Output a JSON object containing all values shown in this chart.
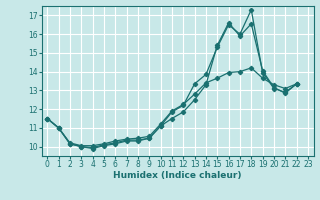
{
  "background_color": "#c8e8e8",
  "grid_color": "#ffffff",
  "line_color": "#1a7070",
  "xlabel": "Humidex (Indice chaleur)",
  "xlim": [
    -0.5,
    23.5
  ],
  "ylim": [
    9.5,
    17.5
  ],
  "yticks": [
    10,
    11,
    12,
    13,
    14,
    15,
    16,
    17
  ],
  "xticks": [
    0,
    1,
    2,
    3,
    4,
    5,
    6,
    7,
    8,
    9,
    10,
    11,
    12,
    13,
    14,
    15,
    16,
    17,
    18,
    19,
    20,
    21,
    22,
    23
  ],
  "series": [
    {
      "x": [
        0,
        1,
        2,
        3,
        4,
        5,
        6,
        7,
        8,
        9,
        10,
        11,
        12,
        13,
        14,
        15,
        16,
        17,
        18,
        19,
        20,
        21,
        22
      ],
      "y": [
        11.5,
        11.0,
        10.15,
        10.0,
        9.9,
        10.05,
        10.15,
        10.3,
        10.3,
        10.45,
        11.1,
        11.5,
        11.85,
        12.5,
        13.3,
        15.4,
        16.6,
        15.9,
        16.55,
        14.05,
        13.15,
        12.85,
        13.35
      ]
    },
    {
      "x": [
        0,
        1,
        2,
        3,
        4,
        5,
        6,
        7,
        8,
        9,
        10,
        11,
        12,
        13,
        14,
        15,
        16,
        17,
        18,
        19,
        20,
        21,
        22
      ],
      "y": [
        11.5,
        11.0,
        10.15,
        10.0,
        9.95,
        10.1,
        10.2,
        10.35,
        10.35,
        10.45,
        11.1,
        11.85,
        12.2,
        13.35,
        13.85,
        15.3,
        16.5,
        16.0,
        17.3,
        13.95,
        13.1,
        12.9,
        13.35
      ]
    },
    {
      "x": [
        0,
        1,
        2,
        3,
        4,
        5,
        6,
        7,
        8,
        9,
        10,
        11,
        12,
        13,
        14,
        15,
        16,
        17,
        18,
        19,
        20,
        21,
        22
      ],
      "y": [
        11.5,
        11.0,
        10.2,
        10.05,
        10.05,
        10.15,
        10.3,
        10.4,
        10.45,
        10.55,
        11.2,
        11.9,
        12.25,
        12.8,
        13.4,
        13.65,
        13.95,
        14.0,
        14.2,
        13.65,
        13.3,
        13.1,
        13.35
      ]
    }
  ]
}
